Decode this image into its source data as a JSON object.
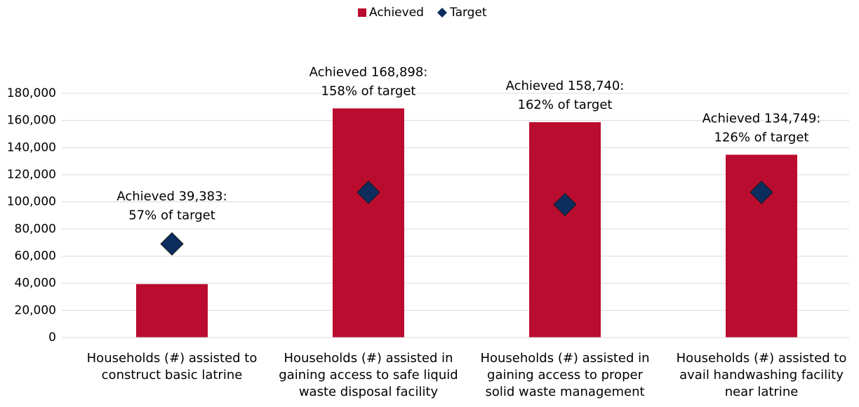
{
  "chart_data": {
    "type": "bar",
    "categories": [
      "Households (#) assisted to construct basic latrine",
      "Households (#) assisted in gaining access to safe liquid waste disposal facility",
      "Households (#) assisted in gaining access to proper solid waste management",
      "Households (#) assisted to avail handwashing facility near latrine"
    ],
    "series": [
      {
        "name": "Achieved",
        "color": "#ba0c2f",
        "values": [
          39383,
          168898,
          158740,
          134749
        ]
      },
      {
        "name": "Target",
        "color": "#0c2d5e",
        "values": [
          69000,
          107000,
          98000,
          107000
        ]
      }
    ],
    "annotations": [
      "Achieved 39,383: 57% of target",
      "Achieved 168,898: 158% of target",
      "Achieved 158,740: 162% of target",
      "Achieved 134,749: 126% of target"
    ],
    "ylim": [
      0,
      180000
    ],
    "yticks": [
      {
        "value": 0,
        "label": "0"
      },
      {
        "value": 20000,
        "label": "20,000"
      },
      {
        "value": 40000,
        "label": "40,000"
      },
      {
        "value": 60000,
        "label": "60,000"
      },
      {
        "value": 80000,
        "label": "80,000"
      },
      {
        "value": 100000,
        "label": "100,000"
      },
      {
        "value": 120000,
        "label": "120,000"
      },
      {
        "value": 140000,
        "label": "140,000"
      },
      {
        "value": 160000,
        "label": "160,000"
      },
      {
        "value": 180000,
        "label": "180,000"
      }
    ],
    "grid": true,
    "legend": "top"
  }
}
